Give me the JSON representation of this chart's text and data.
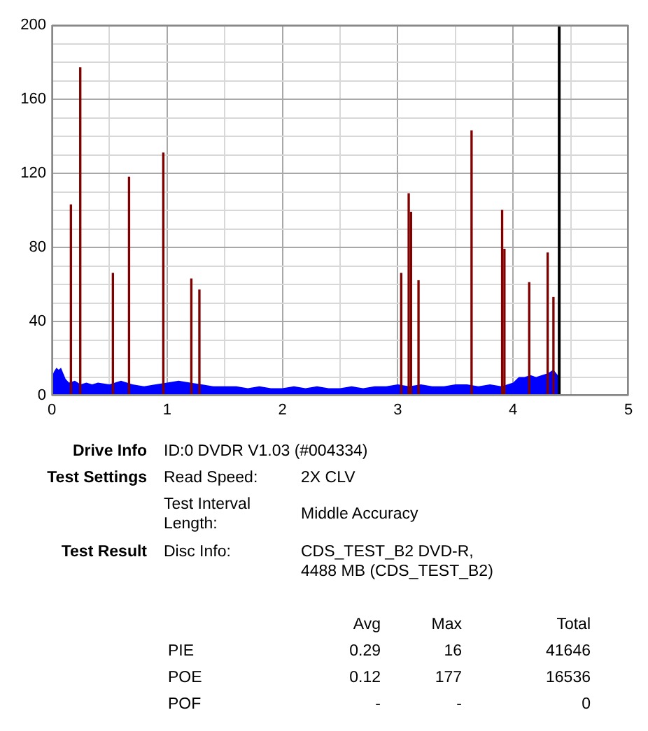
{
  "chart_data": {
    "type": "area",
    "legend": false,
    "grid": true,
    "xlim": [
      0,
      5
    ],
    "ylim": [
      0,
      200
    ],
    "xticks": [
      0,
      {
        "value": 0.5,
        "label": null
      },
      1,
      {
        "value": 1.5,
        "label": null
      },
      2,
      {
        "value": 2.5,
        "label": null
      },
      3,
      {
        "value": 3.5,
        "label": null
      },
      4,
      {
        "value": 4.5,
        "label": null
      },
      5
    ],
    "yticks": [
      0,
      {
        "value": 10,
        "label": null
      },
      {
        "value": 20,
        "label": null
      },
      {
        "value": 30,
        "label": null
      },
      40,
      {
        "value": 50,
        "label": null
      },
      {
        "value": 60,
        "label": null
      },
      {
        "value": 70,
        "label": null
      },
      80,
      {
        "value": 90,
        "label": null
      },
      {
        "value": 100,
        "label": null
      },
      {
        "value": 110,
        "label": null
      },
      120,
      {
        "value": 130,
        "label": null
      },
      {
        "value": 140,
        "label": null
      },
      {
        "value": 150,
        "label": null
      },
      160,
      {
        "value": 170,
        "label": null
      },
      {
        "value": 180,
        "label": null
      },
      {
        "value": 190,
        "label": null
      },
      200
    ],
    "series": [
      {
        "color": "#0000ff",
        "x": [
          0,
          0.02,
          0.04,
          0.06,
          0.08,
          0.1,
          0.12,
          0.15,
          0.2,
          0.25,
          0.3,
          0.35,
          0.4,
          0.5,
          0.6,
          0.7,
          0.8,
          0.9,
          1.0,
          1.1,
          1.2,
          1.3,
          1.4,
          1.5,
          1.6,
          1.7,
          1.8,
          1.9,
          2.0,
          2.1,
          2.2,
          2.3,
          2.4,
          2.5,
          2.6,
          2.7,
          2.8,
          2.9,
          3.0,
          3.1,
          3.2,
          3.3,
          3.4,
          3.5,
          3.6,
          3.7,
          3.8,
          3.9,
          4.0,
          4.05,
          4.1,
          4.15,
          4.2,
          4.25,
          4.3,
          4.35,
          4.4
        ],
        "values": [
          10,
          13,
          15,
          14,
          15,
          12,
          9,
          7,
          8,
          6,
          7,
          6,
          7,
          6,
          8,
          6,
          5,
          6,
          7,
          8,
          7,
          6,
          5,
          5,
          5,
          4,
          5,
          4,
          4,
          5,
          4,
          5,
          4,
          4,
          5,
          4,
          5,
          5,
          6,
          5,
          6,
          5,
          5,
          6,
          6,
          5,
          6,
          5,
          7,
          10,
          10,
          11,
          10,
          11,
          12,
          14,
          10
        ]
      },
      {
        "type": "bar",
        "color": "#800000",
        "x": [
          0.166,
          0.247,
          0.53,
          0.67,
          0.967,
          1.21,
          1.28,
          3.03,
          3.095,
          3.115,
          3.18,
          3.64,
          3.905,
          3.925,
          4.14,
          4.3,
          4.35
        ],
        "values": [
          103,
          177,
          66,
          118,
          131,
          63,
          57,
          66,
          109,
          99,
          62,
          143,
          100,
          79,
          61,
          77,
          53
        ]
      }
    ],
    "ref_lines": [
      {
        "axis": "x",
        "value": 4.4,
        "color": "#000000"
      }
    ],
    "annotations": [
      "Drive Info",
      "ID:0 DVDR V1.03 (#004334)",
      "Test Settings",
      "Read Speed:",
      "2X CLV",
      "Test Interval Length:",
      "Middle Accuracy",
      "Test Result",
      "Disc Info:",
      "CDS_TEST_B2 DVD-R, 4488 MB (CDS_TEST_B2)",
      "Avg",
      "Max",
      "Total",
      "PIE",
      "0.29",
      "16",
      "41646",
      "POE",
      "0.12",
      "177",
      "16536",
      "POF",
      "-",
      "-",
      "0"
    ]
  }
}
